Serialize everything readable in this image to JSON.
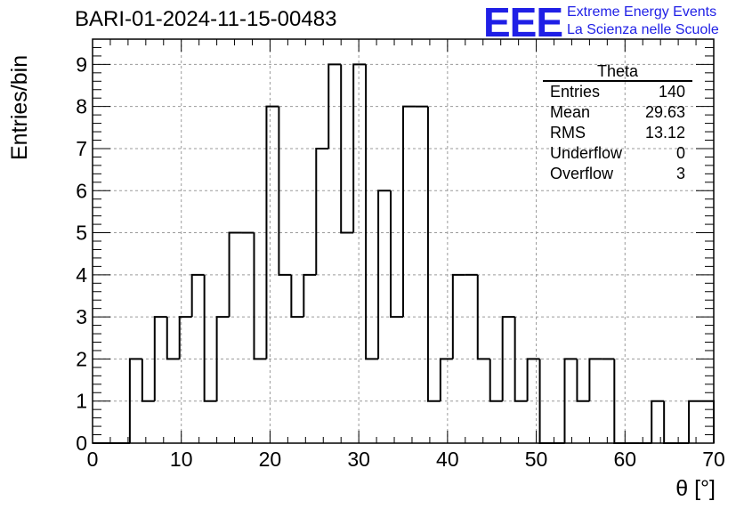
{
  "chart_data": {
    "type": "bar",
    "title": "BARI-01-2024-11-15-00483",
    "xlabel": "θ [°]",
    "ylabel": "Entries/bin",
    "xlim": [
      0,
      70
    ],
    "ylim": [
      0,
      9.6
    ],
    "grid": true,
    "bin_width": 1.4,
    "bin_start": 0,
    "values": [
      0,
      0,
      0,
      2,
      1,
      3,
      2,
      3,
      4,
      1,
      3,
      5,
      5,
      2,
      8,
      4,
      3,
      4,
      7,
      9,
      5,
      9,
      2,
      6,
      3,
      8,
      8,
      1,
      2,
      4,
      4,
      2,
      1,
      3,
      1,
      2,
      0,
      0,
      2,
      1,
      2,
      2,
      0,
      0,
      0,
      1,
      0,
      0,
      1,
      1
    ],
    "xticks": [
      "0",
      "10",
      "20",
      "30",
      "40",
      "50",
      "60",
      "70"
    ],
    "yticks": [
      "0",
      "1",
      "2",
      "3",
      "4",
      "5",
      "6",
      "7",
      "8",
      "9"
    ]
  },
  "stats": {
    "title": "Theta",
    "rows": [
      {
        "label": "Entries",
        "value": "140"
      },
      {
        "label": "Mean",
        "value": "29.63"
      },
      {
        "label": "RMS",
        "value": "13.12"
      },
      {
        "label": "Underflow",
        "value": "0"
      },
      {
        "label": "Overflow",
        "value": "3"
      }
    ]
  },
  "logo": {
    "mark": "EEE",
    "line1": "Extreme Energy Events",
    "line2": "La Scienza nelle Scuole"
  },
  "colors": {
    "logo": "#1f1fe6",
    "line": "#000000",
    "grid": "#9a9a9a"
  }
}
